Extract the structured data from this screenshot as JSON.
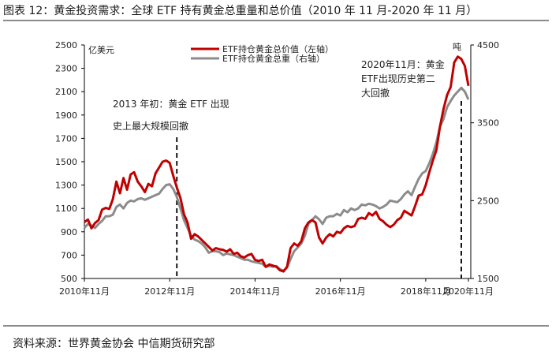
{
  "title": "图表 12：黄金投资需求：全球 ETF 持有黄金总重量和总价值（2010 年 11 月-2020 年 11 月）",
  "source": "资料来源：世界黄金协会  中信期货研究部",
  "colors": {
    "value_series": "#c00000",
    "weight_series": "#8c8c8c",
    "axis": "#000000"
  },
  "chart_data": {
    "type": "line",
    "title": "",
    "y_left": {
      "label": "亿美元",
      "ylim": [
        500,
        2500
      ],
      "ticks": [
        500,
        700,
        900,
        1100,
        1300,
        1500,
        1700,
        1900,
        2100,
        2300,
        2500
      ]
    },
    "y_right": {
      "label": "吨",
      "ylim": [
        1500,
        4500
      ],
      "ticks": [
        1500,
        2500,
        3500,
        4500
      ]
    },
    "x_tick_labels": [
      "2010年11月",
      "2012年11月",
      "2014年11月",
      "2016年11月",
      "2018年11月",
      "2020年11月"
    ],
    "grid": false,
    "legend_position": "top-center",
    "series": [
      {
        "name": "ETF持仓黄金总价值（左轴）",
        "axis": "left",
        "values": [
          983,
          1005,
          930,
          975,
          1000,
          1090,
          1105,
          1095,
          1180,
          1330,
          1230,
          1360,
          1260,
          1390,
          1410,
          1330,
          1290,
          1240,
          1310,
          1290,
          1400,
          1450,
          1500,
          1510,
          1490,
          1380,
          1280,
          1190,
          1050,
          980,
          840,
          880,
          860,
          830,
          800,
          770,
          740,
          760,
          750,
          745,
          730,
          750,
          710,
          720,
          690,
          680,
          700,
          710,
          660,
          650,
          660,
          600,
          620,
          610,
          600,
          570,
          560,
          600,
          760,
          800,
          780,
          820,
          930,
          980,
          1000,
          980,
          850,
          800,
          850,
          880,
          860,
          900,
          890,
          930,
          950,
          940,
          950,
          1010,
          1020,
          1010,
          1060,
          1040,
          1070,
          1010,
          990,
          960,
          940,
          960,
          1000,
          1020,
          1080,
          1060,
          1040,
          1120,
          1210,
          1220,
          1300,
          1410,
          1510,
          1600,
          1800,
          1950,
          2070,
          2140,
          2350,
          2400,
          2380,
          2320,
          2150
        ]
      },
      {
        "name": "ETF持仓黄金总重（右轴）",
        "axis": "right",
        "values": [
          2150,
          2200,
          2180,
          2150,
          2200,
          2240,
          2300,
          2300,
          2320,
          2420,
          2450,
          2400,
          2470,
          2500,
          2490,
          2520,
          2530,
          2510,
          2530,
          2550,
          2570,
          2590,
          2650,
          2700,
          2710,
          2650,
          2550,
          2400,
          2250,
          2150,
          2050,
          2000,
          1980,
          1950,
          1900,
          1830,
          1850,
          1850,
          1840,
          1800,
          1820,
          1810,
          1800,
          1780,
          1760,
          1740,
          1740,
          1720,
          1710,
          1700,
          1690,
          1650,
          1660,
          1650,
          1660,
          1620,
          1600,
          1640,
          1750,
          1850,
          1900,
          1950,
          2050,
          2200,
          2250,
          2300,
          2260,
          2200,
          2280,
          2300,
          2300,
          2330,
          2310,
          2380,
          2350,
          2400,
          2380,
          2400,
          2450,
          2440,
          2460,
          2450,
          2430,
          2400,
          2420,
          2450,
          2500,
          2490,
          2480,
          2520,
          2580,
          2620,
          2570,
          2680,
          2780,
          2850,
          2880,
          2980,
          3100,
          3250,
          3450,
          3550,
          3700,
          3780,
          3850,
          3900,
          3950,
          3900,
          3800
        ]
      }
    ],
    "annotations": [
      {
        "text_lines": [
          "2013 年初：黄金 ETF 出现",
          "史上最大规模回撤"
        ],
        "x_label": "2013年初"
      },
      {
        "text_lines": [
          "2020年11月：黄金",
          "ETF出现历史第二",
          "大回撤"
        ],
        "x_label": "2020年11月"
      }
    ]
  }
}
